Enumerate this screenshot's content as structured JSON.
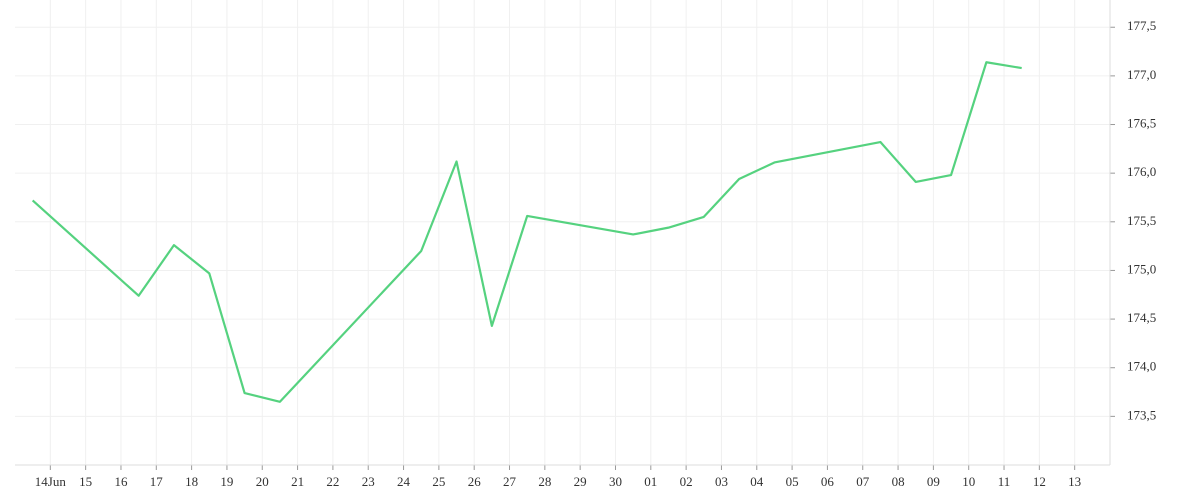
{
  "chart_data": {
    "type": "line",
    "x": [
      -0.5,
      2.5,
      3.5,
      4.5,
      5.5,
      6.5,
      10.5,
      11.5,
      12.5,
      13.5,
      16.5,
      17.5,
      18.5,
      19.5,
      20.5,
      23.5,
      24.5,
      25.5,
      26.5,
      27.5
    ],
    "series": [
      {
        "color": "#55d27f",
        "values": [
          175.72,
          174.74,
          175.26,
          174.97,
          173.74,
          173.65,
          175.2,
          176.12,
          174.43,
          175.56,
          175.37,
          175.44,
          175.55,
          175.94,
          176.11,
          176.32,
          175.91,
          175.98,
          177.14,
          177.08
        ]
      }
    ],
    "xlim": [
      -1,
      30
    ],
    "xticks": [
      {
        "value": 0,
        "label": "14Jun"
      },
      {
        "value": 1,
        "label": "15"
      },
      {
        "value": 2,
        "label": "16"
      },
      {
        "value": 3,
        "label": "17"
      },
      {
        "value": 4,
        "label": "18"
      },
      {
        "value": 5,
        "label": "19"
      },
      {
        "value": 6,
        "label": "20"
      },
      {
        "value": 7,
        "label": "21"
      },
      {
        "value": 8,
        "label": "22"
      },
      {
        "value": 9,
        "label": "23"
      },
      {
        "value": 10,
        "label": "24"
      },
      {
        "value": 11,
        "label": "25"
      },
      {
        "value": 12,
        "label": "26"
      },
      {
        "value": 13,
        "label": "27"
      },
      {
        "value": 14,
        "label": "28"
      },
      {
        "value": 15,
        "label": "29"
      },
      {
        "value": 16,
        "label": "30"
      },
      {
        "value": 17,
        "label": "01"
      },
      {
        "value": 18,
        "label": "02"
      },
      {
        "value": 19,
        "label": "03"
      },
      {
        "value": 20,
        "label": "04"
      },
      {
        "value": 21,
        "label": "05"
      },
      {
        "value": 22,
        "label": "06"
      },
      {
        "value": 23,
        "label": "07"
      },
      {
        "value": 24,
        "label": "08"
      },
      {
        "value": 25,
        "label": "09"
      },
      {
        "value": 26,
        "label": "10"
      },
      {
        "value": 27,
        "label": "11"
      },
      {
        "value": 28,
        "label": "12"
      },
      {
        "value": 29,
        "label": "13"
      }
    ],
    "ylim": [
      173.0,
      177.78
    ],
    "yticks": [
      {
        "value": 173.5,
        "label": "173,5"
      },
      {
        "value": 174.0,
        "label": "174,0"
      },
      {
        "value": 174.5,
        "label": "174,5"
      },
      {
        "value": 175.0,
        "label": "175,0"
      },
      {
        "value": 175.5,
        "label": "175,5"
      },
      {
        "value": 176.0,
        "label": "176,0"
      },
      {
        "value": 176.5,
        "label": "176,5"
      },
      {
        "value": 177.0,
        "label": "177,0"
      },
      {
        "value": 177.5,
        "label": "177,5"
      }
    ],
    "grid": true
  }
}
